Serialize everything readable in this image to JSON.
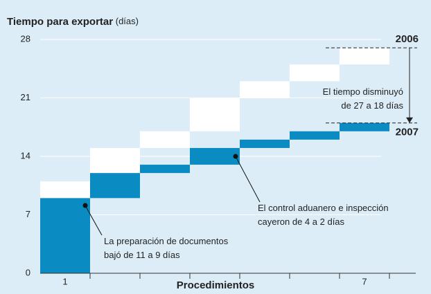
{
  "chart_data": {
    "type": "waterfall",
    "title": "Tiempo para exportar",
    "title_unit": "(días)",
    "x_label": "Procedimientos",
    "categories": [
      "1",
      null,
      null,
      null,
      null,
      null,
      "7"
    ],
    "series": [
      {
        "name": "2006",
        "color": "#ffffff",
        "values": [
          11,
          4,
          2,
          4,
          2,
          2,
          2
        ]
      },
      {
        "name": "2007",
        "color": "#0a8cc2",
        "values": [
          9,
          3,
          1,
          2,
          1,
          1,
          1
        ]
      }
    ],
    "ylim": [
      0,
      28
    ],
    "yticks": [
      0,
      7,
      14,
      21,
      28
    ],
    "grid": true,
    "annotations": [
      {
        "lines": [
          "El tiempo disminuyó",
          "de 27 a 18 días"
        ]
      },
      {
        "lines": [
          "El control aduanero e inspección",
          "cayeron de 4 a 2 días"
        ]
      },
      {
        "lines": [
          "La preparación de documentos",
          "bajó de 11 a 9 días"
        ]
      }
    ]
  }
}
